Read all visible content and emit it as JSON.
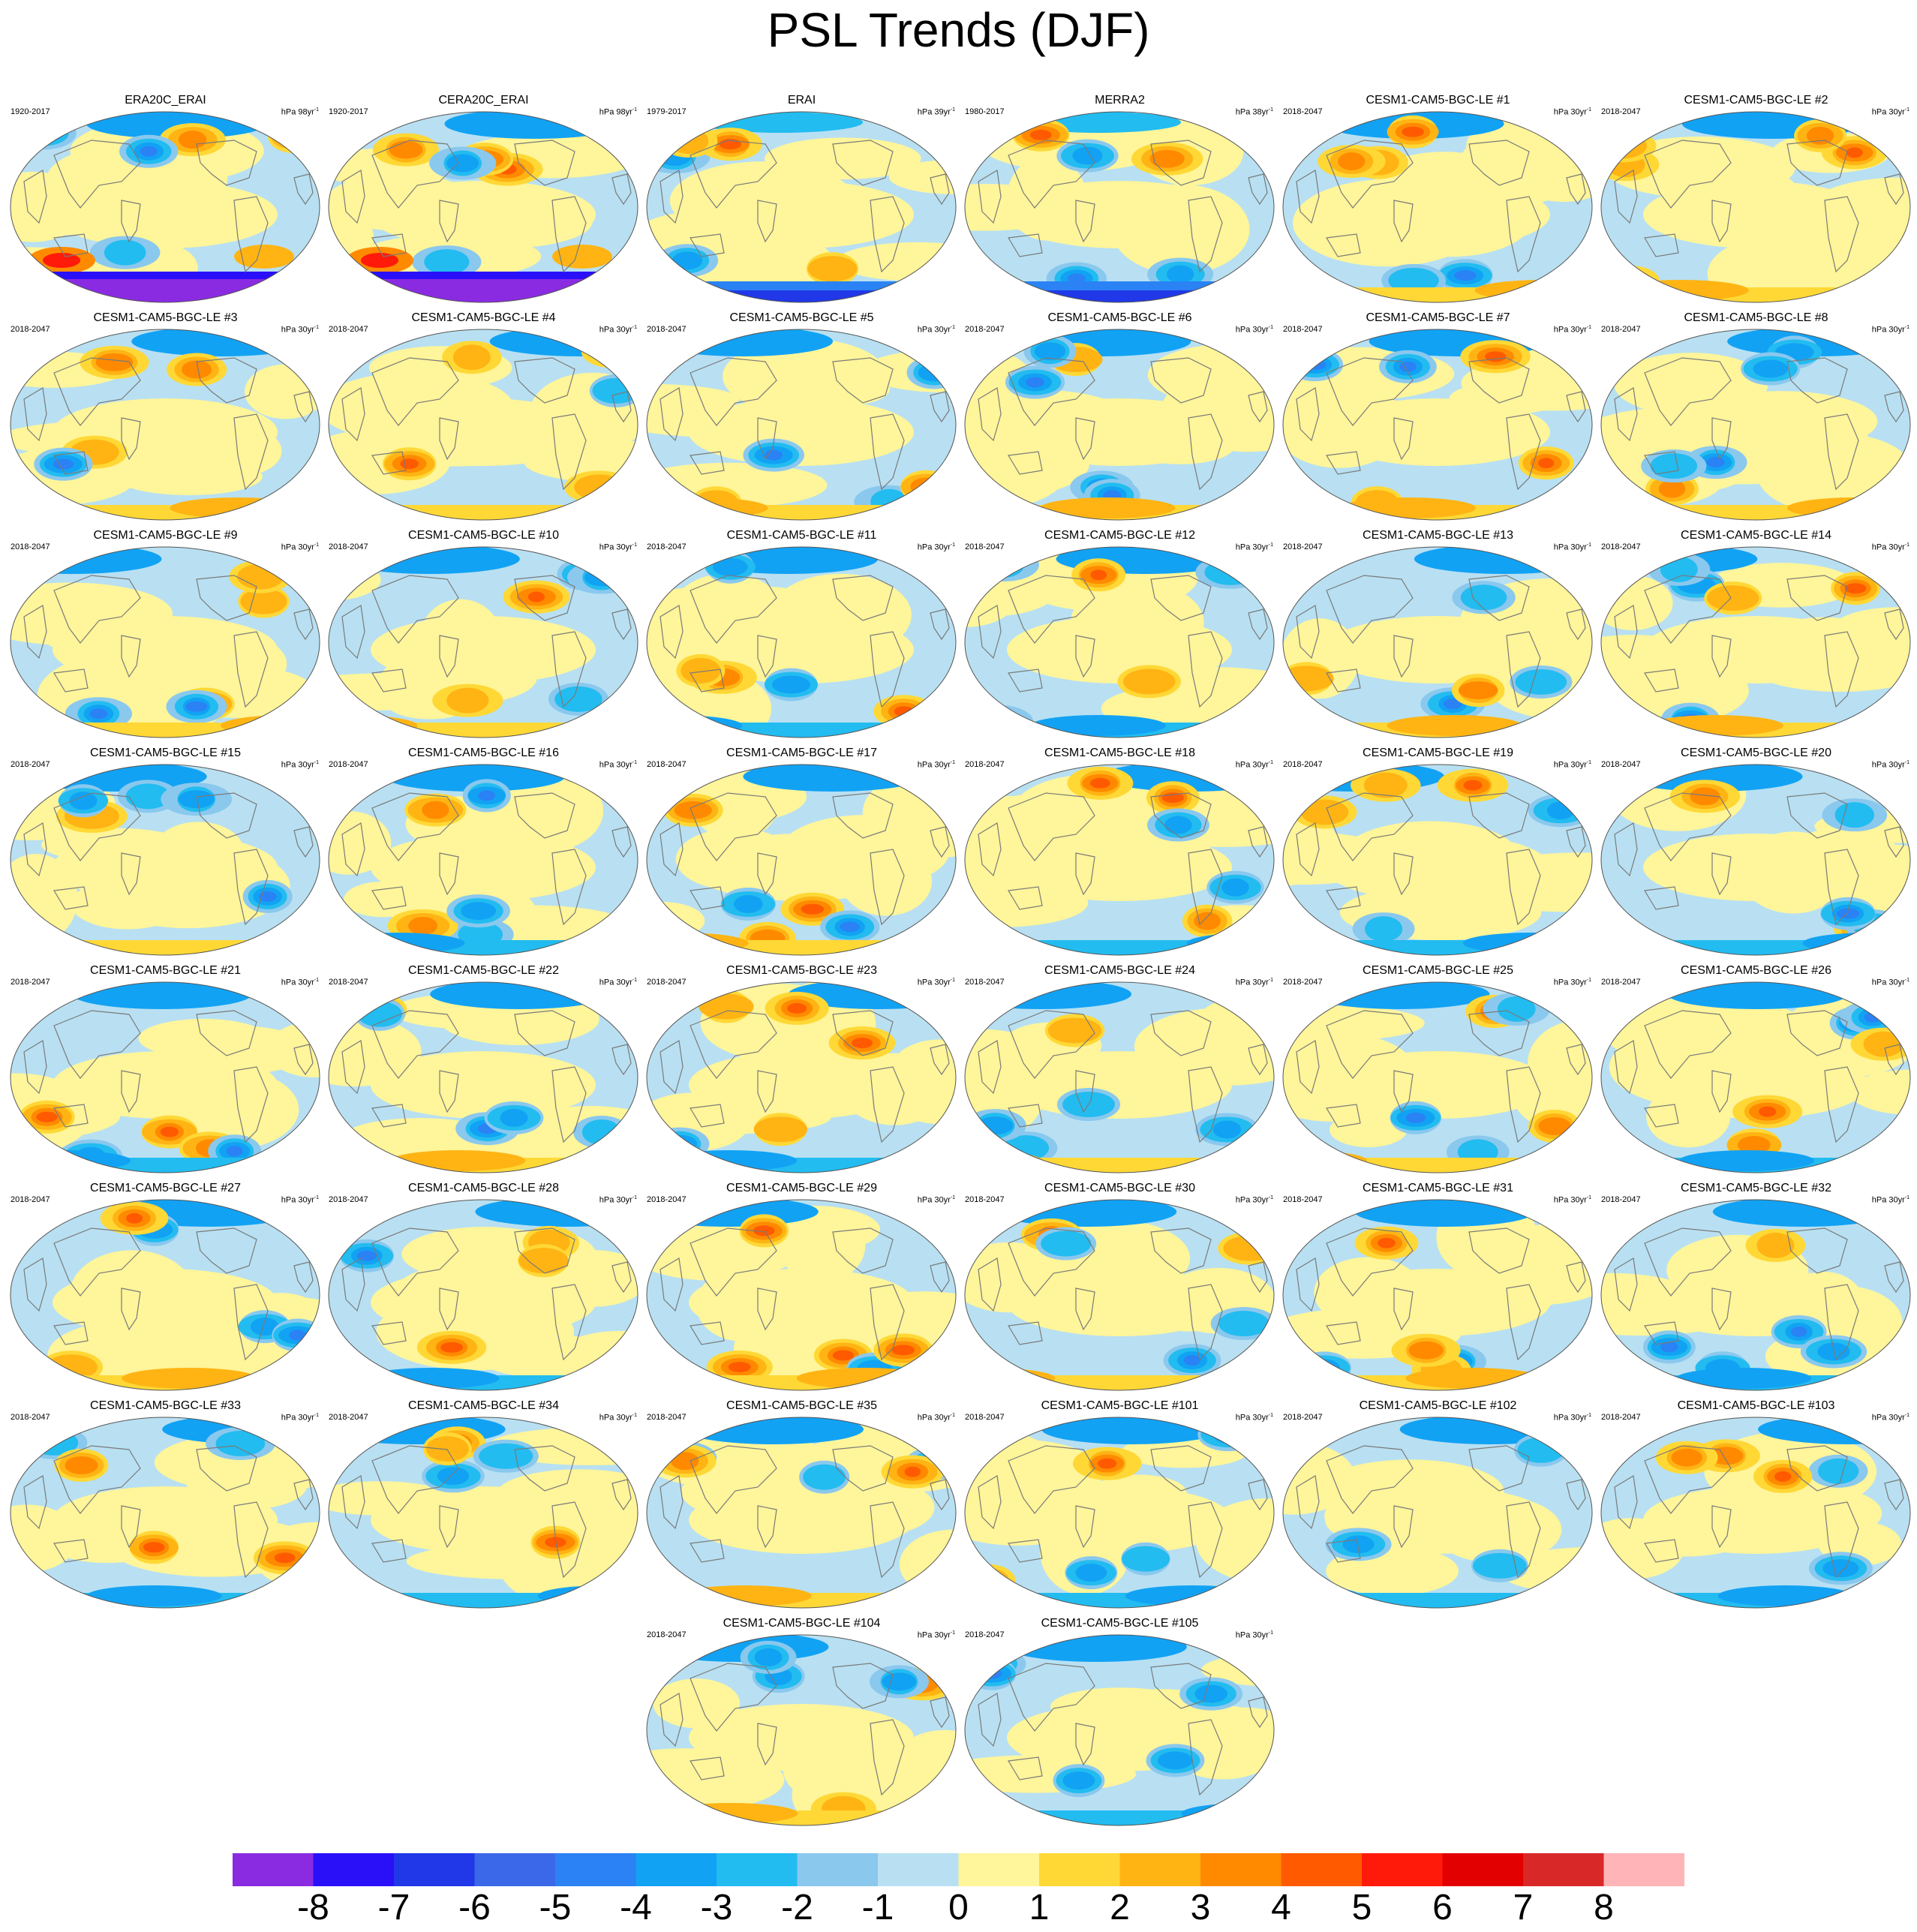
{
  "title": "PSL Trends (DJF)",
  "panels": [
    {
      "title": "ERA20C_ERAI",
      "period": "1920-2017",
      "units": "hPa 98yr",
      "units_sup": "-1",
      "pattern": "obs-long"
    },
    {
      "title": "CERA20C_ERAI",
      "period": "1920-2017",
      "units": "hPa 98yr",
      "units_sup": "-1",
      "pattern": "obs-long"
    },
    {
      "title": "ERAI",
      "period": "1979-2017",
      "units": "hPa 39yr",
      "units_sup": "-1",
      "pattern": "obs-short"
    },
    {
      "title": "MERRA2",
      "period": "1980-2017",
      "units": "hPa 38yr",
      "units_sup": "-1",
      "pattern": "obs-short"
    },
    {
      "title": "CESM1-CAM5-BGC-LE #1",
      "period": "2018-2047",
      "units": "hPa 30yr",
      "units_sup": "-1"
    },
    {
      "title": "CESM1-CAM5-BGC-LE #2",
      "period": "2018-2047",
      "units": "hPa 30yr",
      "units_sup": "-1"
    },
    {
      "title": "CESM1-CAM5-BGC-LE #3",
      "period": "2018-2047",
      "units": "hPa 30yr",
      "units_sup": "-1"
    },
    {
      "title": "CESM1-CAM5-BGC-LE #4",
      "period": "2018-2047",
      "units": "hPa 30yr",
      "units_sup": "-1"
    },
    {
      "title": "CESM1-CAM5-BGC-LE #5",
      "period": "2018-2047",
      "units": "hPa 30yr",
      "units_sup": "-1"
    },
    {
      "title": "CESM1-CAM5-BGC-LE #6",
      "period": "2018-2047",
      "units": "hPa 30yr",
      "units_sup": "-1"
    },
    {
      "title": "CESM1-CAM5-BGC-LE #7",
      "period": "2018-2047",
      "units": "hPa 30yr",
      "units_sup": "-1"
    },
    {
      "title": "CESM1-CAM5-BGC-LE #8",
      "period": "2018-2047",
      "units": "hPa 30yr",
      "units_sup": "-1"
    },
    {
      "title": "CESM1-CAM5-BGC-LE #9",
      "period": "2018-2047",
      "units": "hPa 30yr",
      "units_sup": "-1"
    },
    {
      "title": "CESM1-CAM5-BGC-LE #10",
      "period": "2018-2047",
      "units": "hPa 30yr",
      "units_sup": "-1"
    },
    {
      "title": "CESM1-CAM5-BGC-LE #11",
      "period": "2018-2047",
      "units": "hPa 30yr",
      "units_sup": "-1"
    },
    {
      "title": "CESM1-CAM5-BGC-LE #12",
      "period": "2018-2047",
      "units": "hPa 30yr",
      "units_sup": "-1"
    },
    {
      "title": "CESM1-CAM5-BGC-LE #13",
      "period": "2018-2047",
      "units": "hPa 30yr",
      "units_sup": "-1"
    },
    {
      "title": "CESM1-CAM5-BGC-LE #14",
      "period": "2018-2047",
      "units": "hPa 30yr",
      "units_sup": "-1"
    },
    {
      "title": "CESM1-CAM5-BGC-LE #15",
      "period": "2018-2047",
      "units": "hPa 30yr",
      "units_sup": "-1"
    },
    {
      "title": "CESM1-CAM5-BGC-LE #16",
      "period": "2018-2047",
      "units": "hPa 30yr",
      "units_sup": "-1"
    },
    {
      "title": "CESM1-CAM5-BGC-LE #17",
      "period": "2018-2047",
      "units": "hPa 30yr",
      "units_sup": "-1"
    },
    {
      "title": "CESM1-CAM5-BGC-LE #18",
      "period": "2018-2047",
      "units": "hPa 30yr",
      "units_sup": "-1"
    },
    {
      "title": "CESM1-CAM5-BGC-LE #19",
      "period": "2018-2047",
      "units": "hPa 30yr",
      "units_sup": "-1"
    },
    {
      "title": "CESM1-CAM5-BGC-LE #20",
      "period": "2018-2047",
      "units": "hPa 30yr",
      "units_sup": "-1"
    },
    {
      "title": "CESM1-CAM5-BGC-LE #21",
      "period": "2018-2047",
      "units": "hPa 30yr",
      "units_sup": "-1"
    },
    {
      "title": "CESM1-CAM5-BGC-LE #22",
      "period": "2018-2047",
      "units": "hPa 30yr",
      "units_sup": "-1"
    },
    {
      "title": "CESM1-CAM5-BGC-LE #23",
      "period": "2018-2047",
      "units": "hPa 30yr",
      "units_sup": "-1"
    },
    {
      "title": "CESM1-CAM5-BGC-LE #24",
      "period": "2018-2047",
      "units": "hPa 30yr",
      "units_sup": "-1"
    },
    {
      "title": "CESM1-CAM5-BGC-LE #25",
      "period": "2018-2047",
      "units": "hPa 30yr",
      "units_sup": "-1"
    },
    {
      "title": "CESM1-CAM5-BGC-LE #26",
      "period": "2018-2047",
      "units": "hPa 30yr",
      "units_sup": "-1"
    },
    {
      "title": "CESM1-CAM5-BGC-LE #27",
      "period": "2018-2047",
      "units": "hPa 30yr",
      "units_sup": "-1"
    },
    {
      "title": "CESM1-CAM5-BGC-LE #28",
      "period": "2018-2047",
      "units": "hPa 30yr",
      "units_sup": "-1"
    },
    {
      "title": "CESM1-CAM5-BGC-LE #29",
      "period": "2018-2047",
      "units": "hPa 30yr",
      "units_sup": "-1"
    },
    {
      "title": "CESM1-CAM5-BGC-LE #30",
      "period": "2018-2047",
      "units": "hPa 30yr",
      "units_sup": "-1"
    },
    {
      "title": "CESM1-CAM5-BGC-LE #31",
      "period": "2018-2047",
      "units": "hPa 30yr",
      "units_sup": "-1"
    },
    {
      "title": "CESM1-CAM5-BGC-LE #32",
      "period": "2018-2047",
      "units": "hPa 30yr",
      "units_sup": "-1"
    },
    {
      "title": "CESM1-CAM5-BGC-LE #33",
      "period": "2018-2047",
      "units": "hPa 30yr",
      "units_sup": "-1"
    },
    {
      "title": "CESM1-CAM5-BGC-LE #34",
      "period": "2018-2047",
      "units": "hPa 30yr",
      "units_sup": "-1"
    },
    {
      "title": "CESM1-CAM5-BGC-LE #35",
      "period": "2018-2047",
      "units": "hPa 30yr",
      "units_sup": "-1"
    },
    {
      "title": "CESM1-CAM5-BGC-LE #101",
      "period": "2018-2047",
      "units": "hPa 30yr",
      "units_sup": "-1"
    },
    {
      "title": "CESM1-CAM5-BGC-LE #102",
      "period": "2018-2047",
      "units": "hPa 30yr",
      "units_sup": "-1"
    },
    {
      "title": "CESM1-CAM5-BGC-LE #103",
      "period": "2018-2047",
      "units": "hPa 30yr",
      "units_sup": "-1"
    },
    {
      "title": "CESM1-CAM5-BGC-LE #104",
      "period": "2018-2047",
      "units": "hPa 30yr",
      "units_sup": "-1"
    },
    {
      "title": "CESM1-CAM5-BGC-LE #105",
      "period": "2018-2047",
      "units": "hPa 30yr",
      "units_sup": "-1"
    }
  ],
  "colorbar": {
    "colors": [
      "#8a2be2",
      "#2a10f8",
      "#2038e8",
      "#3a68e8",
      "#2a82f4",
      "#12a2f4",
      "#22bcf0",
      "#8ac8ee",
      "#b8e0f2",
      "#fff59a",
      "#ffd836",
      "#ffb414",
      "#ff8a00",
      "#ff5a00",
      "#ff1a0a",
      "#e20000",
      "#d82828",
      "#ffb4b8"
    ],
    "ticks": [
      "-8",
      "-7",
      "-6",
      "-5",
      "-4",
      "-3",
      "-2",
      "-1",
      "0",
      "1",
      "2",
      "3",
      "4",
      "5",
      "6",
      "7",
      "8"
    ]
  },
  "palette": {
    "map_background": "#b8e0f2",
    "coast": "#7a7a7a",
    "neutral_positive": "#fff59a"
  }
}
